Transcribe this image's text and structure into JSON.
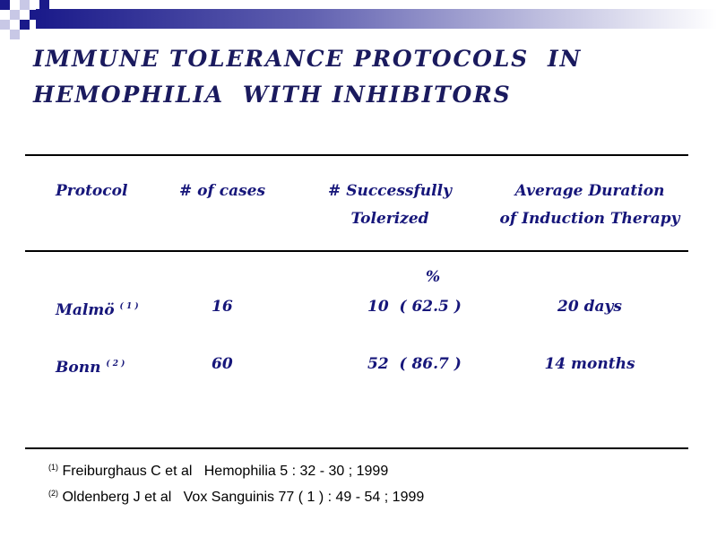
{
  "title": {
    "line1": "IMMUNE TOLERANCE PROTOCOLS  IN",
    "line2": "HEMOPHILIA  WITH INHIBITORS"
  },
  "table": {
    "headers": {
      "protocol": "Protocol",
      "cases": "# of cases",
      "success_line1": "# Successfully",
      "success_line2": "Tolerized",
      "duration_line1": "Average Duration",
      "duration_line2": "of Induction Therapy"
    },
    "percent_symbol": "%",
    "rows": [
      {
        "protocol": "Malmö",
        "ref": "( 1 )",
        "cases": "16",
        "success": "10  ( 62.5 )",
        "duration": "20 days"
      },
      {
        "protocol": "Bonn",
        "ref": "( 2 )",
        "cases": "60",
        "success": "52  ( 86.7 )",
        "duration": "14 months"
      }
    ]
  },
  "references": [
    {
      "num": "(1)",
      "text": "Freiburghaus C et al   Hemophilia 5 : 32 - 30 ; 1999"
    },
    {
      "num": "(2)",
      "text": "Oldenberg J et al   Vox Sanguinis 77 ( 1 ) : 49 - 54 ; 1999"
    }
  ],
  "colors": {
    "title": "#1a1a5e",
    "table_text": "#16167a",
    "accent_dark": "#1a1a8a"
  }
}
